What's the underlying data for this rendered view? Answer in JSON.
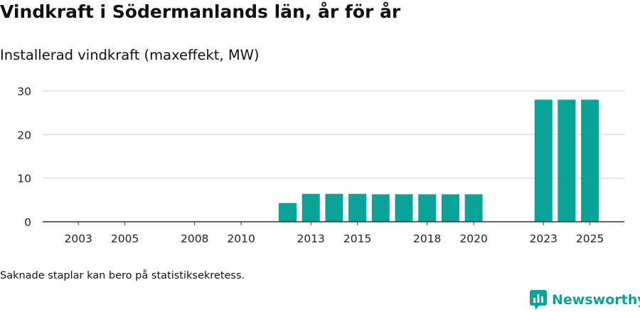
{
  "header": {
    "title": "Vindkraft i Södermanlands län, år för år",
    "subtitle": "Installerad vindkraft (maxeffekt, MW)"
  },
  "footer": {
    "note": "Saknade staplar kan bero på statistiksekretess.",
    "brand": "Newsworthy"
  },
  "colors": {
    "bar": "#0aa39a",
    "grid": "#dddddd",
    "axis": "#333333",
    "brand": "#0aa39a"
  },
  "chart_data": {
    "type": "bar",
    "title": "Vindkraft i Södermanlands län, år för år",
    "subtitle": "Installerad vindkraft (maxeffekt, MW)",
    "xlabel": "",
    "ylabel": "Installerad vindkraft (maxeffekt, MW)",
    "ylim": [
      0,
      30
    ],
    "yticks": [
      0,
      10,
      20,
      30
    ],
    "grid": true,
    "categories": [
      2002,
      2003,
      2004,
      2005,
      2006,
      2007,
      2008,
      2009,
      2010,
      2011,
      2012,
      2013,
      2014,
      2015,
      2016,
      2017,
      2018,
      2019,
      2020,
      2021,
      2022,
      2023,
      2024,
      2025
    ],
    "xtick_labels": [
      "2003",
      "2005",
      "2008",
      "2010",
      "2013",
      "2015",
      "2018",
      "2020",
      "2023",
      "2025"
    ],
    "values": [
      null,
      null,
      null,
      null,
      null,
      null,
      null,
      null,
      null,
      null,
      4.3,
      6.4,
      6.4,
      6.4,
      6.3,
      6.3,
      6.3,
      6.3,
      6.3,
      null,
      null,
      28,
      28,
      28
    ]
  }
}
